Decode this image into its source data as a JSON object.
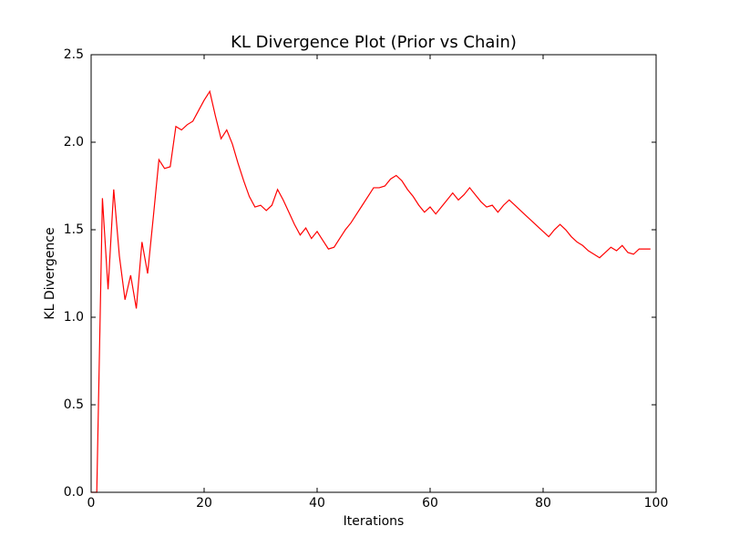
{
  "chart_data": {
    "type": "line",
    "title": "KL Divergence Plot (Prior vs Chain)",
    "x_label": "Iterations",
    "y_label": "KL Divergence",
    "color": "#ff0000",
    "x": [
      0,
      1,
      2,
      3,
      4,
      5,
      6,
      7,
      8,
      9,
      10,
      11,
      12,
      13,
      14,
      15,
      16,
      17,
      18,
      19,
      20,
      21,
      22,
      23,
      24,
      25,
      26,
      27,
      28,
      29,
      30,
      31,
      32,
      33,
      34,
      35,
      36,
      37,
      38,
      39,
      40,
      41,
      42,
      43,
      44,
      45,
      46,
      47,
      48,
      49,
      50,
      51,
      52,
      53,
      54,
      55,
      56,
      57,
      58,
      59,
      60,
      61,
      62,
      63,
      64,
      65,
      66,
      67,
      68,
      69,
      70,
      71,
      72,
      73,
      74,
      75,
      76,
      77,
      78,
      79,
      80,
      81,
      82,
      83,
      84,
      85,
      86,
      87,
      88,
      89,
      90,
      91,
      92,
      93,
      94,
      95,
      96,
      97,
      98,
      99
    ],
    "values": [
      0,
      0,
      1.68,
      1.16,
      1.73,
      1.35,
      1.1,
      1.24,
      1.05,
      1.43,
      1.25,
      1.57,
      1.9,
      1.85,
      1.86,
      2.09,
      2.07,
      2.1,
      2.12,
      2.18,
      2.24,
      2.29,
      2.15,
      2.02,
      2.07,
      1.99,
      1.88,
      1.78,
      1.69,
      1.63,
      1.64,
      1.61,
      1.64,
      1.73,
      1.67,
      1.6,
      1.53,
      1.47,
      1.51,
      1.45,
      1.49,
      1.44,
      1.39,
      1.4,
      1.45,
      1.5,
      1.54,
      1.59,
      1.64,
      1.69,
      1.74,
      1.74,
      1.75,
      1.79,
      1.81,
      1.78,
      1.73,
      1.69,
      1.64,
      1.6,
      1.63,
      1.59,
      1.63,
      1.67,
      1.71,
      1.67,
      1.7,
      1.74,
      1.7,
      1.66,
      1.63,
      1.64,
      1.6,
      1.64,
      1.67,
      1.64,
      1.61,
      1.58,
      1.55,
      1.52,
      1.49,
      1.46,
      1.5,
      1.53,
      1.5,
      1.46,
      1.43,
      1.41,
      1.38,
      1.36,
      1.34,
      1.37,
      1.4,
      1.38,
      1.41,
      1.37,
      1.36,
      1.39,
      1.39,
      1.39
    ],
    "xlim": [
      0,
      100
    ],
    "xticks": [
      0,
      20,
      40,
      60,
      80,
      100
    ],
    "ylim": [
      0,
      2.5
    ],
    "yticks": [
      {
        "value": 0,
        "label": "0.0"
      },
      0.5,
      {
        "value": 1,
        "label": "1.0"
      },
      1.5,
      {
        "value": 2,
        "label": "2.0"
      },
      2.5
    ],
    "grid": false
  }
}
